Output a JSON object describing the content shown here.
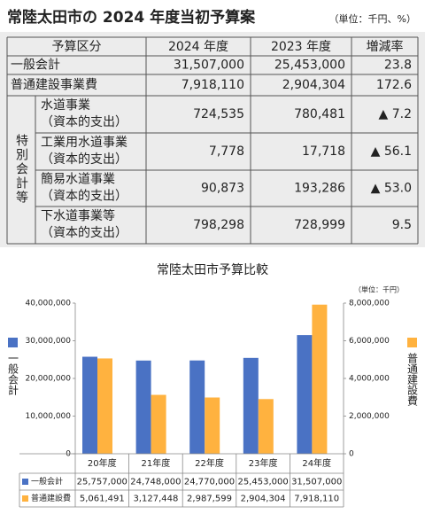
{
  "header": {
    "title": "常陸太田市の 2024 年度当初予算案",
    "unit": "（単位：千円、%）"
  },
  "table": {
    "columns": [
      "予算区分",
      "2024 年度",
      "2023 年度",
      "増減率"
    ],
    "rows": [
      [
        "一般会計",
        "31,507,000",
        "25,453,000",
        "23.8"
      ],
      [
        "普通建設事業費",
        "7,918,110",
        "2,904,304",
        "172.6"
      ]
    ],
    "group": {
      "label": "特別会計等",
      "rows": [
        [
          [
            "水道事業",
            "（資本的支出）"
          ],
          "724,535",
          "780,481",
          "▲ 7.2"
        ],
        [
          [
            "工業用水道事業",
            "（資本的支出）"
          ],
          "7,778",
          "17,718",
          "▲ 56.1"
        ],
        [
          [
            "簡易水道事業",
            "（資本的支出）"
          ],
          "90,873",
          "193,286",
          "▲ 53.0"
        ],
        [
          [
            "下水道事業等",
            "（資本的支出）"
          ],
          "798,298",
          "728,999",
          "9.5"
        ]
      ]
    }
  },
  "chart_data": {
    "type": "bar",
    "title": "常陸太田市予算比較",
    "unit_note": "（単位：千円）",
    "categories": [
      "20年度",
      "21年度",
      "22年度",
      "23年度",
      "24年度"
    ],
    "series": [
      {
        "name": "一般会計",
        "color": "#4a72c4",
        "axis": "y",
        "values": [
          25757000,
          24748000,
          24770000,
          25453000,
          31507000
        ],
        "value_labels": [
          "25,757,000",
          "24,748,000",
          "24,770,000",
          "25,453,000",
          "31,507,000"
        ]
      },
      {
        "name": "普通建設費",
        "color": "#ffb23f",
        "axis": "y2",
        "values": [
          5061491,
          3127448,
          2987599,
          2904304,
          7918110
        ],
        "value_labels": [
          "5,061,491",
          "3,127,448",
          "2,987,599",
          "2,904,304",
          "7,918,110"
        ]
      }
    ],
    "ylim": [
      0,
      40000000
    ],
    "yticks": [
      0,
      {
        "value": 10000000,
        "label": "10,000,000"
      },
      {
        "value": 20000000,
        "label": "20,000,000"
      },
      {
        "value": 30000000,
        "label": "30,000,000"
      },
      {
        "value": 40000000,
        "label": "40,000,000"
      }
    ],
    "y2lim": [
      0,
      8000000
    ],
    "y2ticks": [
      0,
      {
        "value": 2000000,
        "label": "2,000,000"
      },
      {
        "value": 4000000,
        "label": "4,000,000"
      },
      {
        "value": 6000000,
        "label": "6,000,000"
      },
      {
        "value": 8000000,
        "label": "8,000,000"
      }
    ]
  }
}
